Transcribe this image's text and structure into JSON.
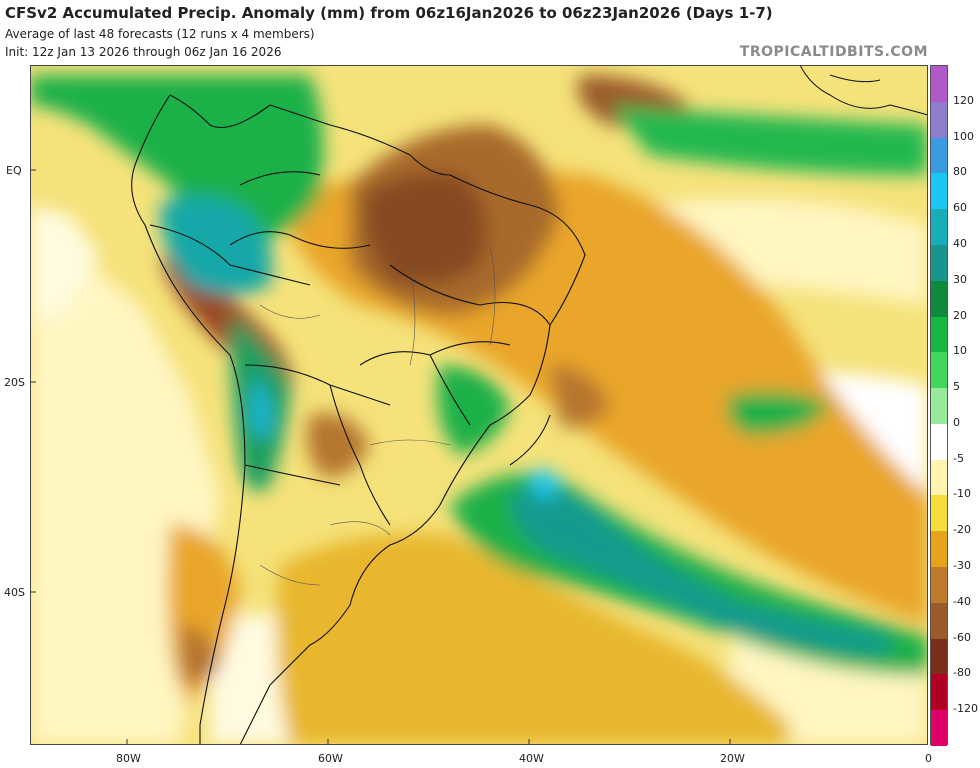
{
  "header": {
    "title": "CFSv2 Accumulated Precip. Anomaly (mm) from 06z16Jan2026 to 06z23Jan2026 (Days 1-7)",
    "subtitle1": "Average of last 48 forecasts (12 runs x 4 members)",
    "subtitle2": "Init: 12z Jan 13 2026 through 06z Jan 16 2026",
    "brand": "TROPICALTIDBITS.COM"
  },
  "axes": {
    "lat_labels": [
      "EQ",
      "20S",
      "40S"
    ],
    "lon_labels": [
      "80W",
      "60W",
      "40W",
      "20W",
      "0"
    ]
  },
  "colorbar": {
    "labels": [
      "120",
      "100",
      "80",
      "60",
      "40",
      "30",
      "20",
      "10",
      "5",
      "0",
      "-5",
      "-10",
      "-20",
      "-30",
      "-40",
      "-60",
      "-80",
      "-120"
    ],
    "colors": [
      "#b05ac8",
      "#8f7ccf",
      "#3b9be0",
      "#1bc7f0",
      "#18aeb8",
      "#17958f",
      "#0f8a3c",
      "#16b842",
      "#3fd85a",
      "#9ae89a",
      "#ffffff",
      "#fff4b0",
      "#f6de3a",
      "#e7a41a",
      "#c07a2e",
      "#9a5a2a",
      "#7a2e1a",
      "#b00025",
      "#e0006a"
    ]
  },
  "legend_scale": "mm"
}
